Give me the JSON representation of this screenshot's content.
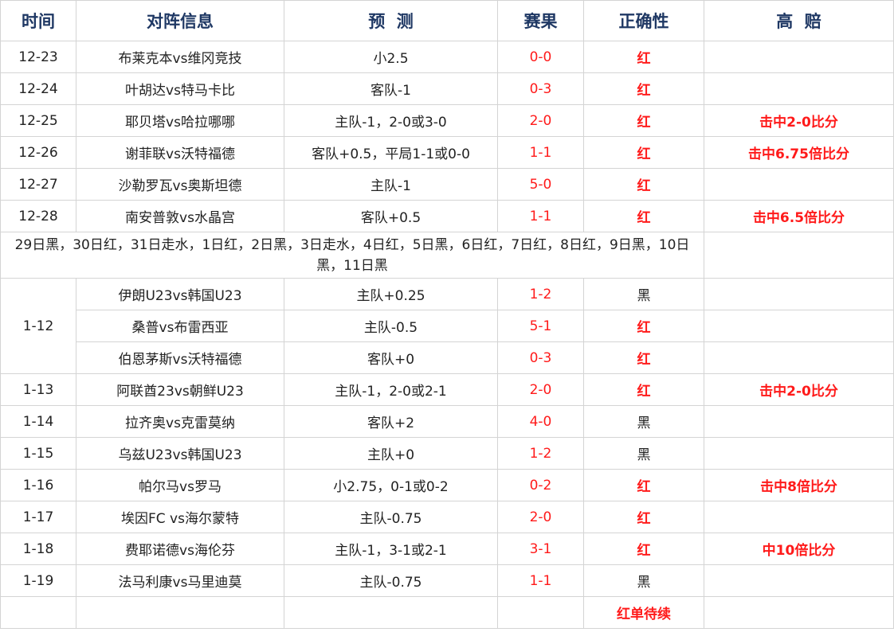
{
  "header": {
    "time": "时间",
    "match": "对阵信息",
    "prediction": "预  测",
    "result": "赛果",
    "correctness": "正确性",
    "high_odds": "高  赔"
  },
  "colors": {
    "header_text": "#1f3864",
    "red": "#ff1a1a",
    "grid": "#d4d4d4"
  },
  "rows_top": [
    {
      "date": "12-23",
      "match": "布莱克本vs维冈竞技",
      "prediction": "小2.5",
      "result": "0-0",
      "correct": "红",
      "odds": ""
    },
    {
      "date": "12-24",
      "match": "叶胡达vs特马卡比",
      "prediction": "客队-1",
      "result": "0-3",
      "correct": "红",
      "odds": ""
    },
    {
      "date": "12-25",
      "match": "耶贝塔vs哈拉哪哪",
      "prediction": "主队-1，2-0或3-0",
      "result": "2-0",
      "correct": "红",
      "odds": "击中2-0比分"
    },
    {
      "date": "12-26",
      "match": "谢菲联vs沃特福德",
      "prediction": "客队+0.5，平局1-1或0-0",
      "result": "1-1",
      "correct": "红",
      "odds": "击中6.75倍比分"
    },
    {
      "date": "12-27",
      "match": "沙勒罗瓦vs奥斯坦德",
      "prediction": "主队-1",
      "result": "5-0",
      "correct": "红",
      "odds": ""
    },
    {
      "date": "12-28",
      "match": "南安普敦vs水晶宫",
      "prediction": "客队+0.5",
      "result": "1-1",
      "correct": "红",
      "odds": "击中6.5倍比分"
    }
  ],
  "note": "29日黑，30日红，31日走水，1日红，2日黑，3日走水，4日红，5日黑，6日红，7日红，8日红，9日黑，10日黑，11日黑",
  "group_date": "1-12",
  "group_rows": [
    {
      "match": "伊朗U23vs韩国U23",
      "prediction": "主队+0.25",
      "result": "1-2",
      "correct": "黑",
      "odds": ""
    },
    {
      "match": "桑普vs布雷西亚",
      "prediction": "主队-0.5",
      "result": "5-1",
      "correct": "红",
      "odds": ""
    },
    {
      "match": "伯恩茅斯vs沃特福德",
      "prediction": "客队+0",
      "result": "0-3",
      "correct": "红",
      "odds": ""
    }
  ],
  "rows_bottom": [
    {
      "date": "1-13",
      "match": "阿联酋23vs朝鲜U23",
      "prediction": "主队-1，2-0或2-1",
      "result": "2-0",
      "correct": "红",
      "odds": "击中2-0比分"
    },
    {
      "date": "1-14",
      "match": "拉齐奥vs克雷莫纳",
      "prediction": "客队+2",
      "result": "4-0",
      "correct": "黑",
      "odds": ""
    },
    {
      "date": "1-15",
      "match": "乌兹U23vs韩国U23",
      "prediction": "主队+0",
      "result": "1-2",
      "correct": "黑",
      "odds": ""
    },
    {
      "date": "1-16",
      "match": "帕尔马vs罗马",
      "prediction": "小2.75，0-1或0-2",
      "result": "0-2",
      "correct": "红",
      "odds": "击中8倍比分"
    },
    {
      "date": "1-17",
      "match": "埃因FC vs海尔蒙特",
      "prediction": "主队-0.75",
      "result": "2-0",
      "correct": "红",
      "odds": ""
    },
    {
      "date": "1-18",
      "match": "费耶诺德vs海伦芬",
      "prediction": "主队-1，3-1或2-1",
      "result": "3-1",
      "correct": "红",
      "odds": "中10倍比分"
    },
    {
      "date": "1-19",
      "match": "法马利康vs马里迪莫",
      "prediction": "主队-0.75",
      "result": "1-1",
      "correct": "黑",
      "odds": ""
    }
  ],
  "footer": {
    "status": "红单待续"
  }
}
